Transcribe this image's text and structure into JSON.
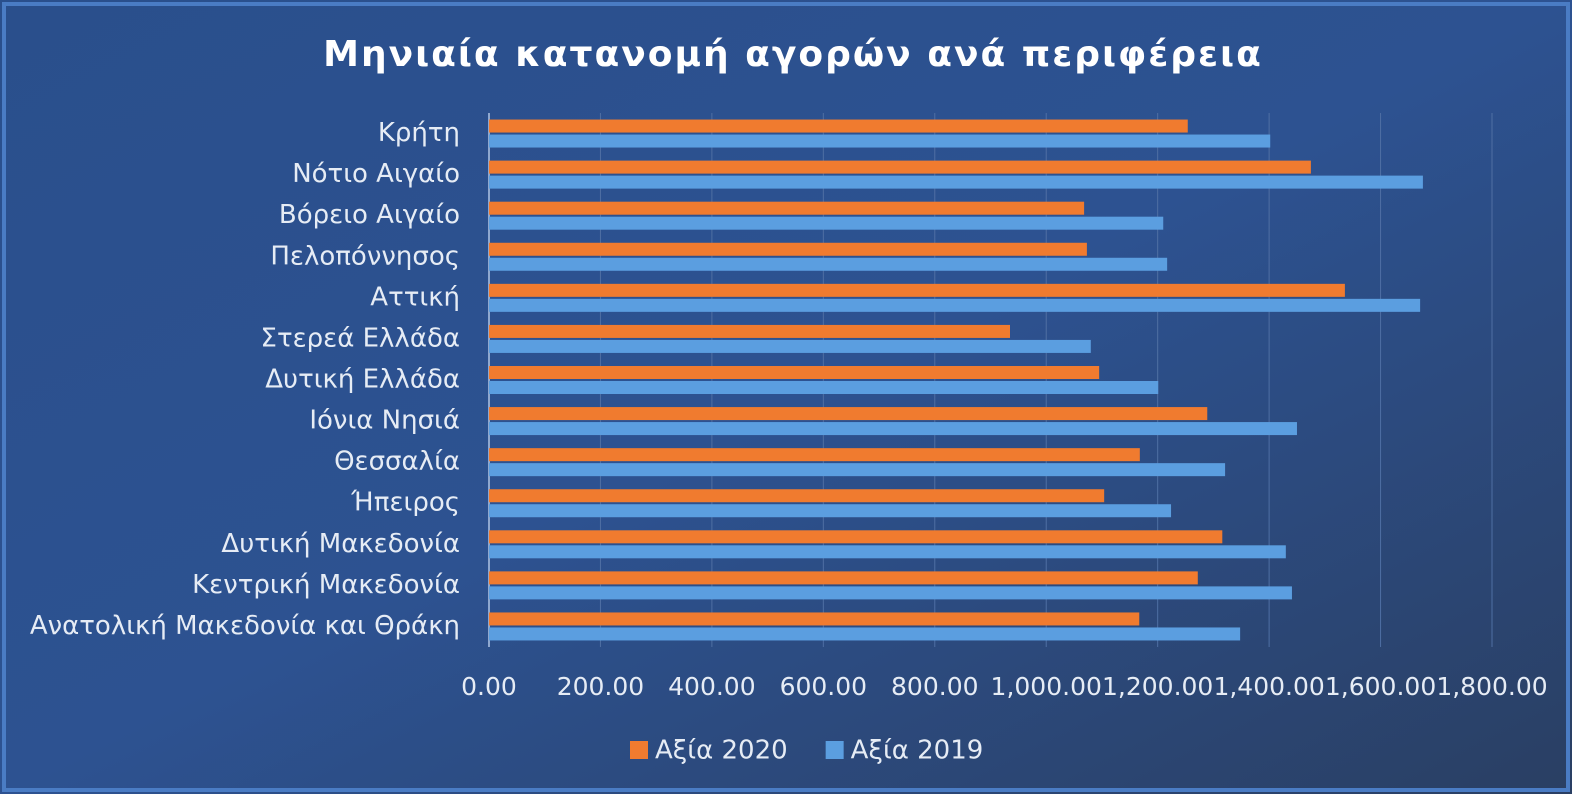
{
  "chart_data": {
    "type": "barh",
    "title": "Μηνιαία κατανομή αγορών ανά περιφέρεια",
    "categories": [
      "Κρήτη",
      "Νότιο Αιγαίο",
      "Βόρειο Αιγαίο",
      "Πελοπόννησος",
      "Αττική",
      "Στερεά Ελλάδα",
      "Δυτική Ελλάδα",
      "Ιόνια Νησιά",
      "Θεσσαλία",
      "Ήπειρος",
      "Δυτική Μακεδονία",
      "Κεντρική Μακεδονία",
      "Ανατολική Μακεδονία και Θράκη"
    ],
    "series": [
      {
        "name": "Αξία 2020",
        "color": "#f07b2f",
        "values": [
          1254,
          1475,
          1068,
          1073,
          1536,
          935,
          1095,
          1289,
          1168,
          1104,
          1316,
          1272,
          1167
        ]
      },
      {
        "name": "Αξία 2019",
        "color": "#5b9ee0",
        "values": [
          1402,
          1676,
          1210,
          1217,
          1671,
          1080,
          1201,
          1450,
          1321,
          1224,
          1430,
          1441,
          1348
        ]
      }
    ],
    "xlim": [
      0,
      1800
    ],
    "xticks": [
      {
        "value": 0,
        "label": "0.00"
      },
      {
        "value": 200,
        "label": "200.00"
      },
      {
        "value": 400,
        "label": "400.00"
      },
      {
        "value": 600,
        "label": "600.00"
      },
      {
        "value": 800,
        "label": "800.00"
      },
      {
        "value": 1000,
        "label": "1,000.00"
      },
      {
        "value": 1200,
        "label": "1,200.00"
      },
      {
        "value": 1400,
        "label": "1,400.00"
      },
      {
        "value": 1600,
        "label": "1,600.00"
      },
      {
        "value": 1800,
        "label": "1,800.00"
      }
    ],
    "grid": true,
    "legend": "bottom"
  }
}
